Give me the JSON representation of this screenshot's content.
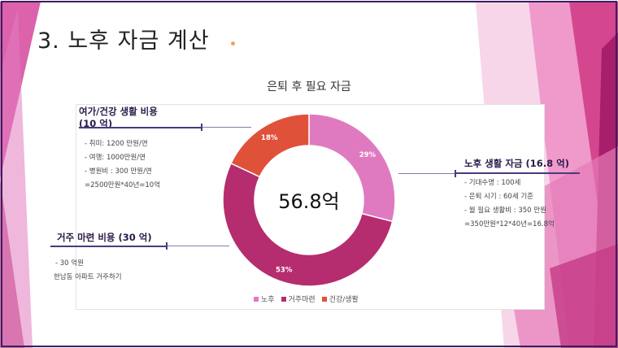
{
  "slide": {
    "title": "3. 노후 자금 계산"
  },
  "callouts": {
    "leisure": {
      "title_line1": "여가/건강 생활 비용",
      "title_line2": "(10 억)",
      "lines": [
        "- 취미: 1200 만원/연",
        "- 여행: 1000만원/연",
        "- 병원비 : 300 만원/연",
        "=2500만원*40년=10억"
      ]
    },
    "housing": {
      "title": "거주 마련 비용 (30 억)",
      "lines": [
        "- 30 억원",
        "한남동 아파트 거주하기"
      ]
    },
    "retirement": {
      "title": "노후 생활 자금 (16.8 억)",
      "lines": [
        "- 기대수명 : 100세",
        "- 은퇴 시기 : 60세 기준",
        "- 월 필요 생활비 : 350 만원",
        "=350만원*12*40년=16.8억"
      ]
    }
  },
  "chart_data": {
    "type": "pie",
    "title": "은퇴 후 필요 자금",
    "center_label": "56.8억",
    "categories": [
      "노후",
      "거주마련",
      "건강/생활"
    ],
    "values": [
      29,
      53,
      18
    ],
    "labels": [
      "29%",
      "53%",
      "18%"
    ],
    "colors": [
      "#e07ac0",
      "#b52d6e",
      "#e0513a"
    ],
    "legend_position": "bottom"
  }
}
